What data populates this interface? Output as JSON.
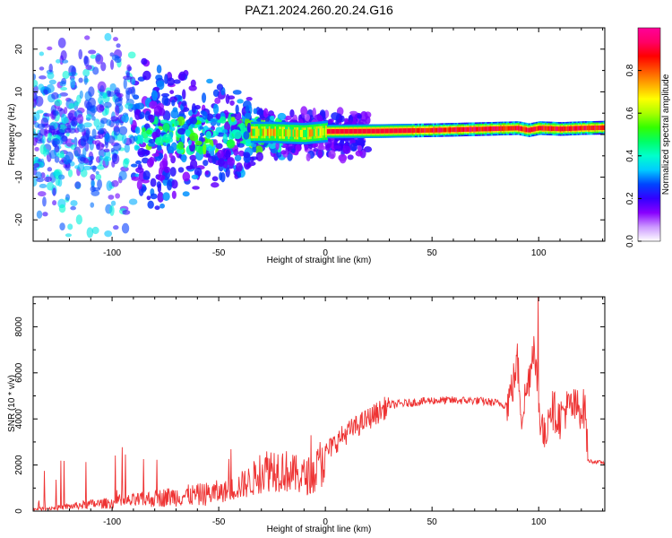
{
  "figure_title": "PAZ1.2024.260.20.24.G16",
  "chart_data": [
    {
      "type": "heatmap",
      "xlabel": "Height of straight line (km)",
      "ylabel": "Frequency (Hz)",
      "xlim": [
        -137,
        131
      ],
      "ylim": [
        -25,
        25
      ],
      "xticks": [
        -100,
        -50,
        0,
        50,
        100
      ],
      "yticks": [
        -20,
        -10,
        0,
        10,
        20
      ],
      "colorbar": {
        "label": "Normalized spectral amplitude",
        "range": [
          0.0,
          1.0
        ],
        "ticks": [
          0.0,
          0.2,
          0.4,
          0.6,
          0.8
        ],
        "colors": [
          "#ffffff",
          "#cc99ff",
          "#8800ff",
          "#3300ff",
          "#0044ff",
          "#00ccff",
          "#00ffcc",
          "#00ff66",
          "#33ff00",
          "#aaff00",
          "#ffff00",
          "#ffaa00",
          "#ff5500",
          "#ff0000",
          "#ff0066",
          "#ff0099"
        ]
      },
      "ridge": {
        "x": [
          -137,
          -100,
          -50,
          -25,
          -10,
          0,
          25,
          50,
          75,
          90,
          95,
          100,
          110,
          120,
          131
        ],
        "y": [
          0,
          0,
          0.5,
          0.5,
          0.2,
          0.7,
          0.8,
          1.0,
          1.3,
          1.5,
          1.0,
          1.5,
          1.3,
          1.5,
          1.6
        ]
      }
    },
    {
      "type": "line",
      "xlabel": "Height of straight line (km)",
      "ylabel": "SNR (10 * v/v)",
      "xlim": [
        -137,
        131
      ],
      "ylim": [
        0,
        9300
      ],
      "xticks": [
        -100,
        -50,
        0,
        50,
        100
      ],
      "yticks": [
        0,
        2000,
        4000,
        6000,
        8000
      ],
      "line_color": "#ee3333",
      "series": [
        {
          "x": [
            -137,
            -130,
            -120,
            -110,
            -100,
            -90,
            -80,
            -70,
            -60,
            -50,
            -45,
            -40,
            -35,
            -30,
            -25,
            -20,
            -15,
            -10,
            -5,
            0,
            5,
            10,
            15,
            20,
            25,
            30,
            40,
            50,
            60,
            70,
            80,
            85,
            88,
            90,
            92,
            95,
            98,
            100,
            103,
            105,
            110,
            112,
            115,
            120,
            122,
            123,
            125,
            131
          ],
          "y": [
            80,
            120,
            200,
            300,
            350,
            450,
            550,
            650,
            700,
            800,
            900,
            1100,
            1300,
            1700,
            1900,
            1800,
            1600,
            1500,
            1600,
            2500,
            3000,
            3400,
            3700,
            4000,
            4300,
            4600,
            4700,
            4800,
            4800,
            4800,
            4700,
            4600,
            5500,
            6500,
            4200,
            5500,
            7500,
            4500,
            3000,
            4600,
            4000,
            4400,
            4500,
            4450,
            4400,
            2200,
            2150,
            2100
          ]
        }
      ]
    }
  ]
}
